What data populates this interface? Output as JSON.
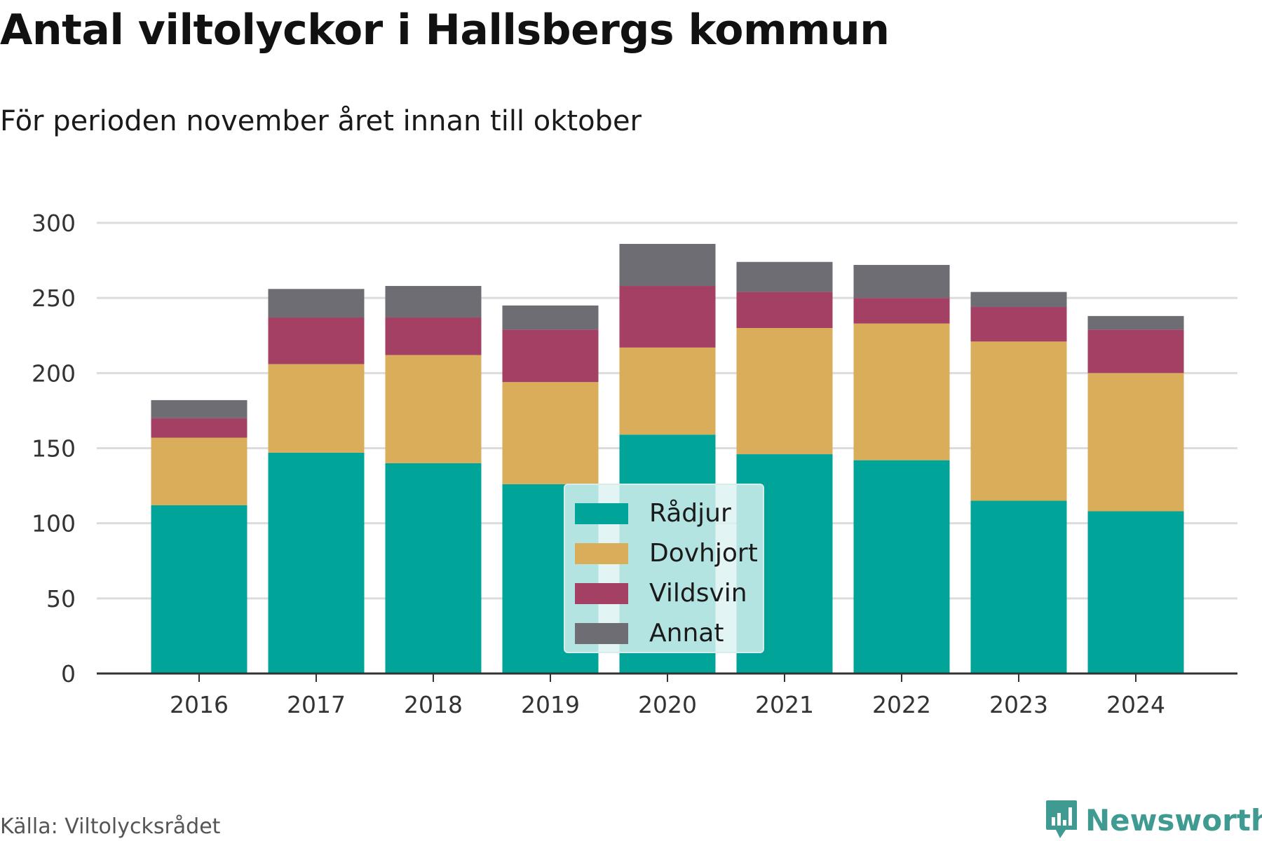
{
  "header": {
    "title": "Antal viltolyckor i Hallsbergs kommun",
    "subtitle": "För perioden november året innan till oktober"
  },
  "footer": {
    "source": "Källa: Viltolycksrådet",
    "brand": "Newsworthy",
    "brand_icon": "bar-chart-logo-icon"
  },
  "colors": {
    "Rådjur": "#00a499",
    "Dovhjort": "#d9ad5a",
    "Vildsvin": "#a44064",
    "Annat": "#6e6d74",
    "grid": "#dcdcdc",
    "axis": "#333333",
    "brand": "#3f9a92"
  },
  "chart_data": {
    "type": "bar",
    "stacked": true,
    "categories": [
      "2016",
      "2017",
      "2018",
      "2019",
      "2020",
      "2021",
      "2022",
      "2023",
      "2024"
    ],
    "series": [
      {
        "name": "Rådjur",
        "values": [
          112,
          147,
          140,
          126,
          159,
          146,
          142,
          115,
          108
        ]
      },
      {
        "name": "Dovhjort",
        "values": [
          45,
          59,
          72,
          68,
          58,
          84,
          91,
          106,
          92
        ]
      },
      {
        "name": "Vildsvin",
        "values": [
          13,
          31,
          25,
          35,
          41,
          24,
          17,
          23,
          29
        ]
      },
      {
        "name": "Annat",
        "values": [
          12,
          19,
          21,
          16,
          28,
          20,
          22,
          10,
          9
        ]
      }
    ],
    "yticks": [
      0,
      50,
      100,
      150,
      200,
      250,
      300
    ],
    "ylim": [
      0,
      300
    ],
    "grid": true,
    "legend_position": "center-bottom overlay",
    "legend": [
      "Rådjur",
      "Dovhjort",
      "Vildsvin",
      "Annat"
    ]
  }
}
